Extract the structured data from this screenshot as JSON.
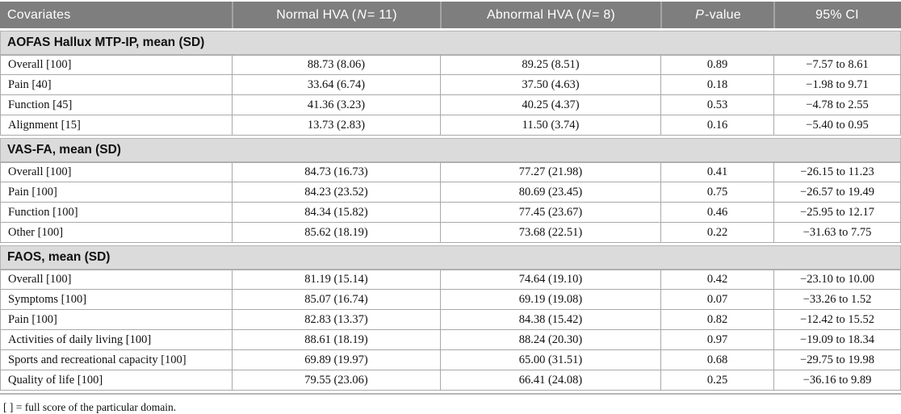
{
  "header": {
    "columns": [
      {
        "pre": "Covariates",
        "it": "",
        "post": ""
      },
      {
        "pre": "Normal HVA (",
        "it": "N",
        "post": " = 11)"
      },
      {
        "pre": "Abnormal HVA (",
        "it": "N",
        "post": " = 8)"
      },
      {
        "pre": "",
        "it": "P",
        "post": "-value"
      },
      {
        "pre": "95% CI",
        "it": "",
        "post": ""
      }
    ]
  },
  "table": {
    "sections": [
      {
        "title": "AOFAS Hallux MTP-IP, mean (SD)",
        "rows": [
          {
            "label": "Overall [100]",
            "normal": "88.73 (8.06)",
            "abnormal": "89.25 (8.51)",
            "p": "0.89",
            "ci": "−7.57 to 8.61"
          },
          {
            "label": "Pain [40]",
            "normal": "33.64 (6.74)",
            "abnormal": "37.50 (4.63)",
            "p": "0.18",
            "ci": "−1.98 to 9.71"
          },
          {
            "label": "Function [45]",
            "normal": "41.36 (3.23)",
            "abnormal": "40.25 (4.37)",
            "p": "0.53",
            "ci": "−4.78 to 2.55"
          },
          {
            "label": "Alignment [15]",
            "normal": "13.73 (2.83)",
            "abnormal": "11.50 (3.74)",
            "p": "0.16",
            "ci": "−5.40 to 0.95"
          }
        ]
      },
      {
        "title": "VAS-FA, mean (SD)",
        "rows": [
          {
            "label": "Overall [100]",
            "normal": "84.73 (16.73)",
            "abnormal": "77.27 (21.98)",
            "p": "0.41",
            "ci": "−26.15 to 11.23"
          },
          {
            "label": "Pain [100]",
            "normal": "84.23 (23.52)",
            "abnormal": "80.69 (23.45)",
            "p": "0.75",
            "ci": "−26.57 to 19.49"
          },
          {
            "label": "Function [100]",
            "normal": "84.34 (15.82)",
            "abnormal": "77.45 (23.67)",
            "p": "0.46",
            "ci": "−25.95 to 12.17"
          },
          {
            "label": "Other [100]",
            "normal": "85.62 (18.19)",
            "abnormal": "73.68 (22.51)",
            "p": "0.22",
            "ci": "−31.63 to 7.75"
          }
        ]
      },
      {
        "title": "FAOS, mean (SD)",
        "rows": [
          {
            "label": "Overall [100]",
            "normal": "81.19 (15.14)",
            "abnormal": "74.64 (19.10)",
            "p": "0.42",
            "ci": "−23.10 to 10.00"
          },
          {
            "label": "Symptoms [100]",
            "normal": "85.07 (16.74)",
            "abnormal": "69.19 (19.08)",
            "p": "0.07",
            "ci": "−33.26 to 1.52"
          },
          {
            "label": "Pain [100]",
            "normal": "82.83 (13.37)",
            "abnormal": "84.38 (15.42)",
            "p": "0.82",
            "ci": "−12.42 to 15.52"
          },
          {
            "label": "Activities of daily living [100]",
            "normal": "88.61 (18.19)",
            "abnormal": "88.24 (20.30)",
            "p": "0.97",
            "ci": "−19.09 to 18.34"
          },
          {
            "label": "Sports and recreational capacity [100]",
            "normal": "69.89 (19.97)",
            "abnormal": "65.00 (31.51)",
            "p": "0.68",
            "ci": "−29.75 to 19.98"
          },
          {
            "label": "Quality of life [100]",
            "normal": "79.55 (23.06)",
            "abnormal": "66.41 (24.08)",
            "p": "0.25",
            "ci": "−36.16 to 9.89"
          }
        ]
      }
    ]
  },
  "footnote": "[ ] = full score of the particular domain.",
  "colors": {
    "header_bg": "#7e7e7e",
    "header_text": "#ffffff",
    "section_bg": "#dbdbdb",
    "border": "#a9a9a9"
  }
}
